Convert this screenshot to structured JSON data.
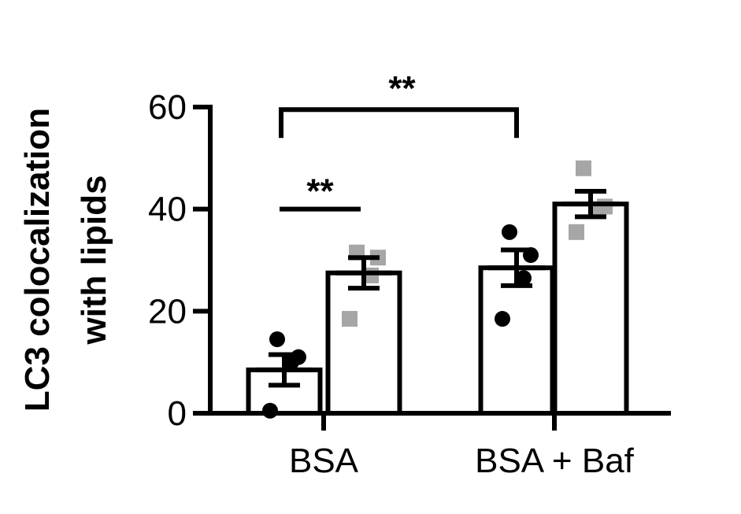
{
  "chart_data": {
    "type": "bar",
    "ylabel_lines": [
      "LC3 colocalization",
      "with lipids"
    ],
    "ylim": [
      0,
      60
    ],
    "yticks": [
      "0",
      "20",
      "40",
      "60"
    ],
    "ytick_values": [
      0,
      20,
      40,
      60
    ],
    "categories": [
      "BSA",
      "BSA + Baf"
    ],
    "colors": {
      "black": "#000000",
      "gray": "#a6a6a6",
      "bar_fill": "#ffffff"
    },
    "bars": [
      {
        "category": "BSA",
        "marker": "circle",
        "color": "#000000",
        "mean": 8.5,
        "sem": 3,
        "points": [
          14.5,
          11,
          10,
          0.5
        ]
      },
      {
        "category": "BSA",
        "marker": "square",
        "color": "#a6a6a6",
        "mean": 27.5,
        "sem": 3,
        "points": [
          31.5,
          30.5,
          27,
          18.5
        ]
      },
      {
        "category": "BSA + Baf",
        "marker": "circle",
        "color": "#000000",
        "mean": 28.5,
        "sem": 3.5,
        "points": [
          35.5,
          31,
          26.5,
          18.5
        ]
      },
      {
        "category": "BSA + Baf",
        "marker": "square",
        "color": "#a6a6a6",
        "mean": 41,
        "sem": 2.5,
        "points": [
          48,
          40.5,
          40,
          35.5
        ]
      }
    ],
    "significance": [
      {
        "label": "**",
        "from_bar": 0,
        "to_bar": 1,
        "y": 40,
        "style": "line"
      },
      {
        "label": "**",
        "from_bar": 0,
        "to_bar": 2,
        "y": 59.5,
        "style": "bracket"
      }
    ]
  }
}
